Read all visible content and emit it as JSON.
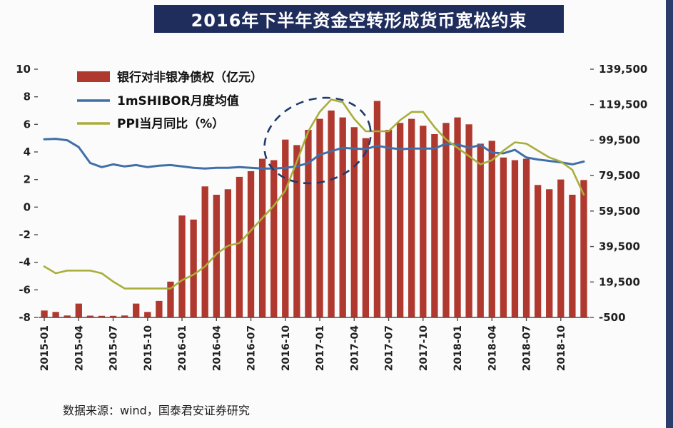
{
  "page": {
    "title_banner": "2016年下半年资金空转形成货币宽松约束",
    "source_note": "数据来源：wind，国泰君安证券研究"
  },
  "colors": {
    "banner_bg": "#1f2d5c",
    "accent_strip": "#2b3d6b",
    "bar": "#b0392f",
    "shibor_line": "#3f6fa8",
    "ppi_line": "#a9ae3b",
    "axis_text": "#1f1f1f",
    "annotation": "#1f3a6e"
  },
  "chart_data": {
    "type": "combo",
    "title": "2016年下半年资金空转形成货币宽松约束",
    "x": [
      "2015-01",
      "2015-02",
      "2015-03",
      "2015-04",
      "2015-05",
      "2015-06",
      "2015-07",
      "2015-08",
      "2015-09",
      "2015-10",
      "2015-11",
      "2015-12",
      "2016-01",
      "2016-02",
      "2016-03",
      "2016-04",
      "2016-05",
      "2016-06",
      "2016-07",
      "2016-08",
      "2016-09",
      "2016-10",
      "2016-11",
      "2016-12",
      "2017-01",
      "2017-02",
      "2017-03",
      "2017-04",
      "2017-05",
      "2017-06",
      "2017-07",
      "2017-08",
      "2017-09",
      "2017-10",
      "2017-11",
      "2017-12",
      "2018-01",
      "2018-02",
      "2018-03",
      "2018-04",
      "2018-05",
      "2018-06",
      "2018-07",
      "2018-08",
      "2018-09",
      "2018-10",
      "2018-11",
      "2018-12"
    ],
    "x_tick_every": 3,
    "series": [
      {
        "name": "银行对非银净债权（亿元）",
        "type": "bar",
        "axis": "right",
        "values": [
          3400,
          2600,
          600,
          7300,
          500,
          400,
          400,
          600,
          7300,
          2600,
          8800,
          19700,
          57000,
          54700,
          73400,
          68700,
          71800,
          78800,
          82000,
          89000,
          88200,
          99800,
          96700,
          105300,
          111500,
          116200,
          112300,
          106800,
          100600,
          121600,
          105300,
          109200,
          111500,
          107600,
          102900,
          109200,
          112300,
          108400,
          97500,
          99100,
          89700,
          88200,
          89000,
          74200,
          71800,
          77300,
          68700,
          77000
        ]
      },
      {
        "name": "1mSHIBOR月度均值",
        "type": "line",
        "axis": "left",
        "values": [
          4.92,
          4.95,
          4.85,
          4.35,
          3.2,
          2.9,
          3.1,
          2.95,
          3.05,
          2.9,
          3.0,
          3.05,
          2.95,
          2.85,
          2.8,
          2.85,
          2.85,
          2.9,
          2.85,
          2.8,
          2.8,
          2.85,
          2.95,
          3.2,
          3.8,
          4.05,
          4.3,
          4.25,
          4.2,
          4.45,
          4.3,
          4.2,
          4.25,
          4.25,
          4.25,
          4.6,
          4.55,
          4.3,
          4.5,
          3.95,
          3.9,
          4.15,
          3.6,
          3.45,
          3.35,
          3.25,
          3.1,
          3.3
        ]
      },
      {
        "name": "PPI当月同比（%）",
        "type": "line",
        "axis": "left",
        "values": [
          -4.3,
          -4.8,
          -4.6,
          -4.6,
          -4.6,
          -4.8,
          -5.4,
          -5.9,
          -5.9,
          -5.9,
          -5.9,
          -5.9,
          -5.3,
          -4.9,
          -4.3,
          -3.4,
          -2.8,
          -2.6,
          -1.7,
          -0.8,
          0.1,
          1.2,
          3.3,
          5.5,
          6.9,
          7.8,
          7.6,
          6.4,
          5.5,
          5.5,
          5.5,
          6.3,
          6.9,
          6.9,
          5.8,
          4.9,
          4.3,
          3.7,
          3.1,
          3.4,
          4.1,
          4.7,
          4.6,
          4.1,
          3.6,
          3.3,
          2.7,
          0.9
        ]
      }
    ],
    "left_axis": {
      "min": -8,
      "max": 10,
      "ticks": [
        10,
        8,
        6,
        4,
        2,
        0,
        -2,
        -4,
        -6,
        -8
      ]
    },
    "right_axis": {
      "min": -500,
      "max": 139500,
      "ticks": [
        "139,500",
        "119,500",
        "99,500",
        "79,500",
        "59,500",
        "39,500",
        "19,500",
        "-500"
      ]
    },
    "annotation_ellipse": {
      "highlight_range": "2016-10 至 2017-04",
      "style": "dashed-circle"
    },
    "legend_position": "top-left-inside",
    "grid": "off"
  }
}
